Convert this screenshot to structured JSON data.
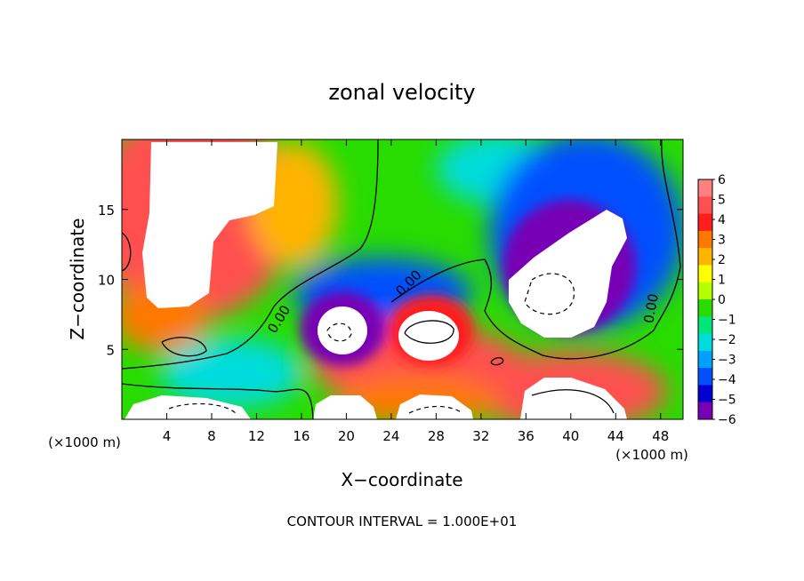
{
  "chart_data": {
    "type": "heatmap",
    "title": "zonal velocity",
    "xlabel": "X−coordinate",
    "ylabel": "Z−coordinate",
    "x_unit_left": "(×1000 m)",
    "x_unit_right": "(×1000 m)",
    "footer": "CONTOUR INTERVAL = 1.000E+01",
    "xlim": [
      0,
      50
    ],
    "ylim": [
      0,
      20
    ],
    "x_ticks": [
      4,
      8,
      12,
      16,
      20,
      24,
      28,
      32,
      36,
      40,
      44,
      48
    ],
    "y_ticks": [
      5,
      10,
      15
    ],
    "contour_label": "0.00",
    "colorbar": {
      "min": -6,
      "max": 6,
      "labels": [
        "6",
        "5",
        "4",
        "3",
        "2",
        "1",
        "0",
        "−1",
        "−2",
        "−3",
        "−4",
        "−5",
        "−6"
      ],
      "colors": [
        "#ff8080",
        "#ff5050",
        "#ff1e1e",
        "#ff7800",
        "#ffb400",
        "#ffff00",
        "#b4ff00",
        "#28dc00",
        "#00e678",
        "#00dcdc",
        "#00a0ff",
        "#0050ff",
        "#0000d2",
        "#7800b4"
      ]
    },
    "features": [
      {
        "kind": "saturated-positive",
        "x": [
          1.5,
          14
        ],
        "z": [
          8,
          20
        ]
      },
      {
        "kind": "saturated-negative",
        "x": [
          34,
          45
        ],
        "z": [
          6,
          14.5
        ]
      },
      {
        "kind": "saturated-positive",
        "x": [
          24,
          30
        ],
        "z": [
          4,
          8
        ]
      },
      {
        "kind": "saturated-negative",
        "x": [
          17,
          22
        ],
        "z": [
          4,
          8
        ]
      },
      {
        "kind": "saturated-positive",
        "x": [
          1,
          11
        ],
        "z": [
          0,
          2
        ]
      },
      {
        "kind": "saturated-positive",
        "x": [
          19,
          24
        ],
        "z": [
          0,
          2
        ]
      },
      {
        "kind": "saturated-positive",
        "x": [
          25,
          31
        ],
        "z": [
          0,
          2
        ]
      },
      {
        "kind": "saturated-positive",
        "x": [
          36,
          44
        ],
        "z": [
          0,
          3
        ]
      }
    ]
  }
}
